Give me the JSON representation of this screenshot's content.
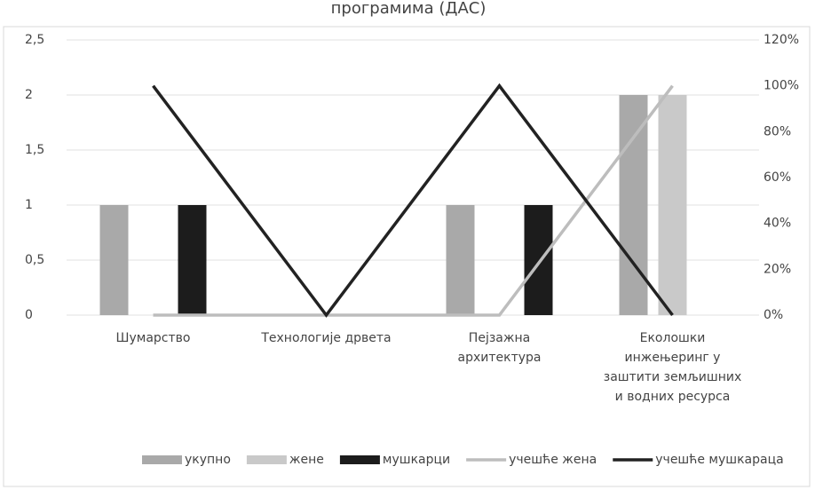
{
  "chart_data": {
    "type": "bar",
    "title": "програмима (ДАС)",
    "categories": [
      "Шумарство",
      "Технологије дрвета",
      "Пејзажна архитектура",
      "Еколошки инжењеринг у заштити земљишних и водних ресурса"
    ],
    "series": [
      {
        "name": "укупно",
        "color": "#a9a9a9",
        "values": [
          1,
          0,
          1,
          2
        ]
      },
      {
        "name": "жене",
        "color": "#c9c9c9",
        "values": [
          0,
          0,
          0,
          2
        ]
      },
      {
        "name": "мушкарци",
        "color": "#1c1c1c",
        "values": [
          1,
          0,
          1,
          0
        ]
      },
      {
        "name": "учешће жена",
        "color": "#bdbdbd",
        "type": "line",
        "axis": "y2",
        "values": [
          0,
          0,
          0,
          100
        ]
      },
      {
        "name": "учешће мушкараца",
        "color": "#222222",
        "type": "line",
        "axis": "y2",
        "values": [
          100,
          0,
          100,
          0
        ]
      }
    ],
    "ylim": [
      0,
      2.5
    ],
    "yticks": [
      0,
      {
        "value": 0.5,
        "label": "0,5"
      },
      1,
      {
        "value": 1.5,
        "label": "1,5"
      },
      2,
      {
        "value": 2.5,
        "label": "2,5"
      }
    ],
    "y2lim": [
      0,
      120
    ],
    "y2ticks": [
      {
        "value": 0,
        "label": "0%"
      },
      {
        "value": 20,
        "label": "20%"
      },
      {
        "value": 40,
        "label": "40%"
      },
      {
        "value": 60,
        "label": "60%"
      },
      {
        "value": 80,
        "label": "80%"
      },
      {
        "value": 100,
        "label": "100%"
      },
      {
        "value": 120,
        "label": "120%"
      }
    ],
    "grid": true,
    "legend": "bottom"
  }
}
